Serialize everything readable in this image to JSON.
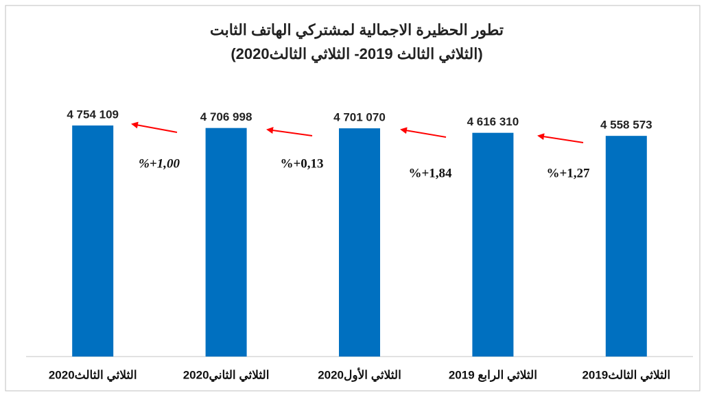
{
  "chart_data": {
    "type": "bar",
    "title": "تطور الحظيرة الاجمالية لمشتركي الهاتف الثابت",
    "subtitle": "(الثلاثي الثالث 2019- الثلاثي الثالث2020)",
    "categories": [
      "الثلاثي الثالث2020",
      "الثلاثي الثاني2020",
      "الثلاثي الأول2020",
      "الثلاثي الرابع 2019",
      "الثلاثي الثالث2019"
    ],
    "values": [
      4754109,
      4706998,
      4701070,
      4616310,
      4558573
    ],
    "value_labels": [
      "4 754 109",
      "4 706 998",
      "4 701 070",
      "4 616 310",
      "4 558 573"
    ],
    "annotations": [
      "%+1,00",
      "%+0,13",
      "%+1,84",
      "%+1,27"
    ],
    "color": "#0070c0",
    "ylim": [
      400000,
      5000000
    ]
  }
}
